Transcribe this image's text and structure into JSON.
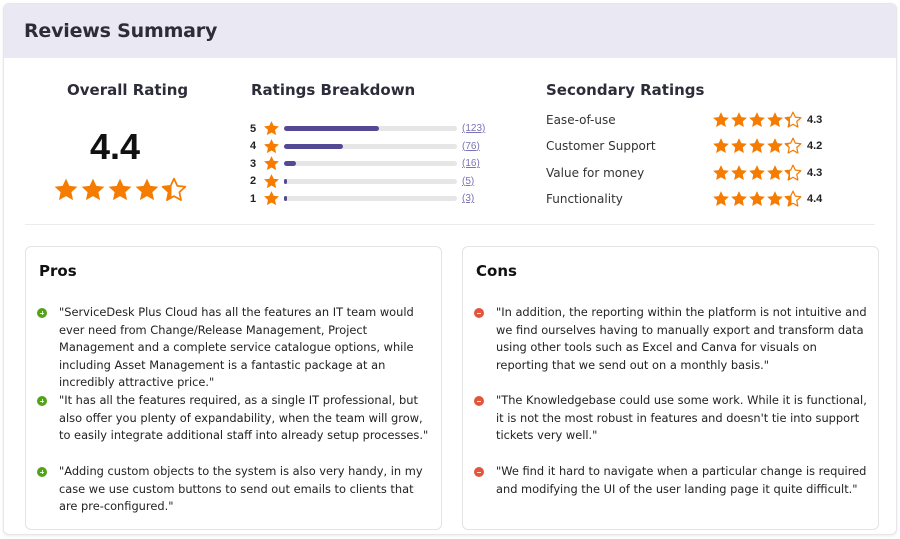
{
  "header": {
    "title": "Reviews Summary"
  },
  "overall": {
    "title": "Overall Rating",
    "value": "4.4",
    "stars_icon": "star-rating-icon",
    "star_fill": [
      1,
      1,
      1,
      1,
      0.4
    ]
  },
  "breakdown": {
    "title": "Ratings Breakdown",
    "rows": [
      {
        "stars": "5",
        "count": "(123)",
        "count_num": 123,
        "percent": 55
      },
      {
        "stars": "4",
        "count": "(76)",
        "count_num": 76,
        "percent": 34
      },
      {
        "stars": "3",
        "count": "(16)",
        "count_num": 16,
        "percent": 7
      },
      {
        "stars": "2",
        "count": "(5)",
        "count_num": 5,
        "percent": 2
      },
      {
        "stars": "1",
        "count": "(3)",
        "count_num": 3,
        "percent": 1
      }
    ]
  },
  "secondary": {
    "title": "Secondary Ratings",
    "rows": [
      {
        "label": "Ease-of-use",
        "value": "4.3",
        "star_fill": [
          1,
          1,
          1,
          1,
          0.3
        ]
      },
      {
        "label": "Customer Support",
        "value": "4.2",
        "star_fill": [
          1,
          1,
          1,
          1,
          0.2
        ]
      },
      {
        "label": "Value for money",
        "value": "4.3",
        "star_fill": [
          1,
          1,
          1,
          1,
          0.3
        ]
      },
      {
        "label": "Functionality",
        "value": "4.4",
        "star_fill": [
          1,
          1,
          1,
          1,
          0.4
        ]
      }
    ]
  },
  "pros": {
    "title": "Pros",
    "items": [
      "\"ServiceDesk Plus Cloud has all the features an IT team would ever need from Change/Release Management, Project Management and a complete service catalogue options, while including Asset Management is a fantastic package at an incredibly attractive price.\"",
      "\"It has all the features required, as a single IT professional, but also offer you plenty of expandability, when the team will grow, to easily integrate additional staff into already setup processes.\"",
      "\"Adding custom objects to the system is also very handy, in my case we use custom buttons to send out emails to clients that are pre-configured.\""
    ]
  },
  "cons": {
    "title": "Cons",
    "items": [
      "\"In addition, the reporting within the platform is not intuitive and we find ourselves having to manually export and transform data using other tools such as Excel and Canva for visuals on reporting that we send out on a monthly basis.\"",
      "\"The Knowledgebase could use some work. While it is functional, it is not the most robust in features and doesn't tie into support tickets very well.\"",
      "\"We find it hard to navigate when a particular change is required and modifying the UI of the user landing page it quite difficult.\""
    ]
  },
  "colors": {
    "header_bg": "#eae8f3",
    "star": "#f57c00",
    "bar_fill": "#544a93",
    "bar_track": "#e6e6e6",
    "pro_icon": "#53a318",
    "con_icon": "#e4553d"
  }
}
